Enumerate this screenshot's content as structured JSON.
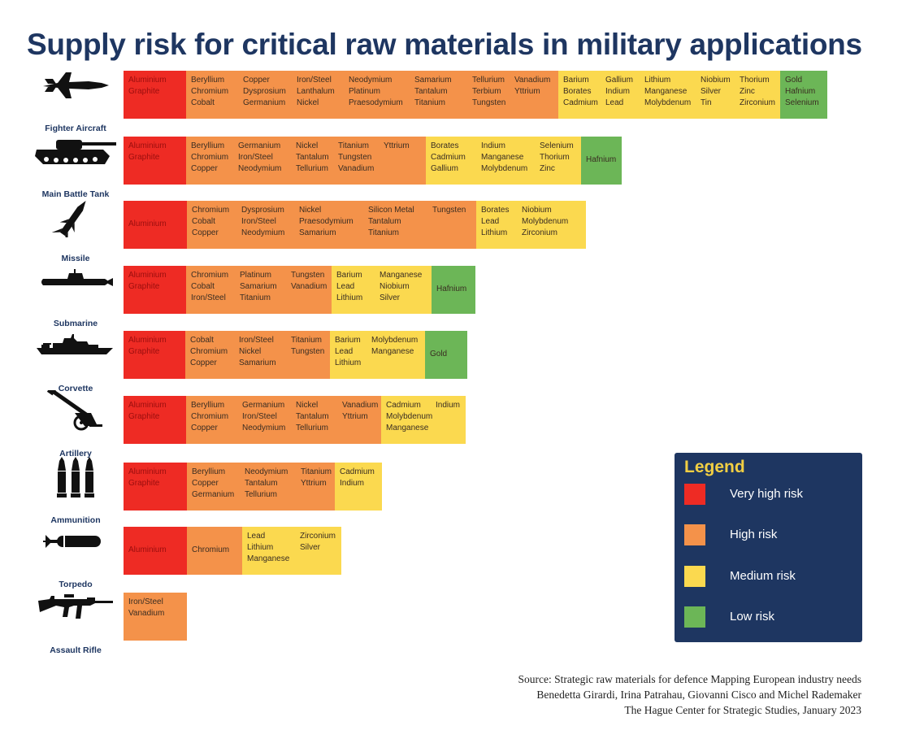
{
  "title": "Supply risk for critical raw materials in military applications",
  "risk_colors": {
    "very_high": "#ee2b24",
    "high": "#f4924a",
    "medium": "#fbd94f",
    "low": "#6cb657"
  },
  "legend": {
    "title": "Legend",
    "items": [
      {
        "label": "Very high risk",
        "color": "#ee2b24"
      },
      {
        "label": "High risk",
        "color": "#f4924a"
      },
      {
        "label": "Medium risk",
        "color": "#fbd94f"
      },
      {
        "label": "Low risk",
        "color": "#6cb657"
      }
    ]
  },
  "source": {
    "lines": [
      "Source: Strategic raw materials for defence Mapping European industry needs",
      "Benedetta Girardi, Irina Patrahau, Giovanni Cisco and Michel Rademaker",
      "The Hague Center for Strategic Studies, January 2023"
    ]
  },
  "chart_data": {
    "type": "table",
    "title": "Supply risk for critical raw materials in military applications",
    "risk_levels": [
      "Very high risk",
      "High risk",
      "Medium risk",
      "Low risk"
    ],
    "rows": [
      {
        "weapon": "Fighter Aircraft",
        "icon": "fighter-aircraft-icon",
        "very_high": [
          [
            "Aluminium",
            "Graphite"
          ]
        ],
        "high": [
          [
            "Beryllium",
            "Chromium",
            "Cobalt"
          ],
          [
            "Copper",
            "Dysprosium",
            "Germanium"
          ],
          [
            "Iron/Steel",
            "Lanthalum",
            "Nickel"
          ],
          [
            "Neodymium",
            "Platinum",
            "Praesodymium"
          ],
          [
            "Samarium",
            "Tantalum",
            "Titanium"
          ],
          [
            "Tellurium",
            "Terbium",
            "Tungsten"
          ],
          [
            "Vanadium",
            "Yttrium"
          ]
        ],
        "medium": [
          [
            "Barium",
            "Borates",
            "Cadmium"
          ],
          [
            "Gallium",
            "Indium",
            "Lead"
          ],
          [
            "Lithium",
            "Manganese",
            "Molybdenum"
          ],
          [
            "Niobium",
            "Silver",
            "Tin"
          ],
          [
            "Thorium",
            "Zinc",
            "Zirconium"
          ]
        ],
        "low": [
          [
            "Gold",
            "Hafnium",
            "Selenium"
          ]
        ]
      },
      {
        "weapon": "Main Battle Tank",
        "icon": "tank-icon",
        "very_high": [
          [
            "Aluminium",
            "Graphite"
          ]
        ],
        "high": [
          [
            "Beryllium",
            "Chromium",
            "Copper"
          ],
          [
            "Germanium",
            "Iron/Steel",
            "Neodymium"
          ],
          [
            "Nickel",
            "Tantalum",
            "Tellurium"
          ],
          [
            "Titanium",
            "Tungsten",
            "Vanadium"
          ],
          [
            "Yttrium"
          ]
        ],
        "medium": [
          [
            "Borates",
            "Cadmium",
            "Gallium"
          ],
          [
            "Indium",
            "Manganese",
            "Molybdenum"
          ],
          [
            "Selenium",
            "Thorium",
            "Zinc"
          ]
        ],
        "low": [
          [
            "Hafnium"
          ]
        ]
      },
      {
        "weapon": "Missile",
        "icon": "missile-icon",
        "very_high": [
          [
            "Aluminium"
          ]
        ],
        "high": [
          [
            "Chromium",
            "Cobalt",
            "Copper"
          ],
          [
            "Dysprosium",
            "Iron/Steel",
            "Neodymium"
          ],
          [
            "Nickel",
            "Praesodymium",
            "Samarium"
          ],
          [
            "Silicon Metal",
            "Tantalum",
            "Titanium"
          ],
          [
            "Tungsten"
          ]
        ],
        "medium": [
          [
            "Borates",
            "Lead",
            "Lithium"
          ],
          [
            "Niobium",
            "Molybdenum",
            "Zirconium"
          ]
        ],
        "low": []
      },
      {
        "weapon": "Submarine",
        "icon": "submarine-icon",
        "very_high": [
          [
            "Aluminium",
            "Graphite"
          ]
        ],
        "high": [
          [
            "Chromium",
            "Cobalt",
            "Iron/Steel"
          ],
          [
            "Platinum",
            "Samarium",
            "Titanium"
          ],
          [
            "Tungsten",
            "Vanadium"
          ]
        ],
        "medium": [
          [
            "Barium",
            "Lead",
            "Lithium"
          ],
          [
            "Manganese",
            "Niobium",
            "Silver"
          ]
        ],
        "low": [
          [
            "Hafnium"
          ]
        ]
      },
      {
        "weapon": "Corvette",
        "icon": "corvette-icon",
        "very_high": [
          [
            "Aluminium",
            "Graphite"
          ]
        ],
        "high": [
          [
            "Cobalt",
            "Chromium",
            "Copper"
          ],
          [
            "Iron/Steel",
            "Nickel",
            "Samarium"
          ],
          [
            "Titanium",
            "Tungsten"
          ]
        ],
        "medium": [
          [
            "Barium",
            "Lead",
            "Lithium"
          ],
          [
            "Molybdenum",
            "Manganese"
          ]
        ],
        "low": [
          [
            "Gold"
          ]
        ]
      },
      {
        "weapon": "Artillery",
        "icon": "artillery-icon",
        "very_high": [
          [
            "Aluminium",
            "Graphite"
          ]
        ],
        "high": [
          [
            "Beryllium",
            "Chromium",
            "Copper"
          ],
          [
            "Germanium",
            "Iron/Steel",
            "Neodymium"
          ],
          [
            "Nickel",
            "Tantalum",
            "Tellurium"
          ],
          [
            "Vanadium",
            "Yttrium"
          ]
        ],
        "medium": [
          [
            "Cadmium",
            "Molybdenum",
            "Manganese"
          ],
          [
            "Indium"
          ]
        ],
        "low": []
      },
      {
        "weapon": "Ammunition",
        "icon": "ammunition-icon",
        "very_high": [
          [
            "Aluminium",
            "Graphite"
          ]
        ],
        "high": [
          [
            "Beryllium",
            "Copper",
            "Germanium"
          ],
          [
            "Neodymium",
            "Tantalum",
            "Tellurium"
          ],
          [
            "Titanium",
            "Yttrium"
          ]
        ],
        "medium": [
          [
            "Cadmium",
            "Indium"
          ]
        ],
        "low": []
      },
      {
        "weapon": "Torpedo",
        "icon": "torpedo-icon",
        "very_high": [
          [
            "Aluminium"
          ]
        ],
        "high": [
          [
            "Chromium"
          ]
        ],
        "medium": [
          [
            "Lead",
            "Lithium",
            "Manganese"
          ],
          [
            "Zirconium",
            "Silver"
          ]
        ],
        "low": []
      },
      {
        "weapon": "Assault Rifle",
        "icon": "assault-rifle-icon",
        "very_high": [],
        "high": [
          [
            "Iron/Steel",
            "Vanadium"
          ]
        ],
        "medium": [],
        "low": []
      }
    ]
  }
}
